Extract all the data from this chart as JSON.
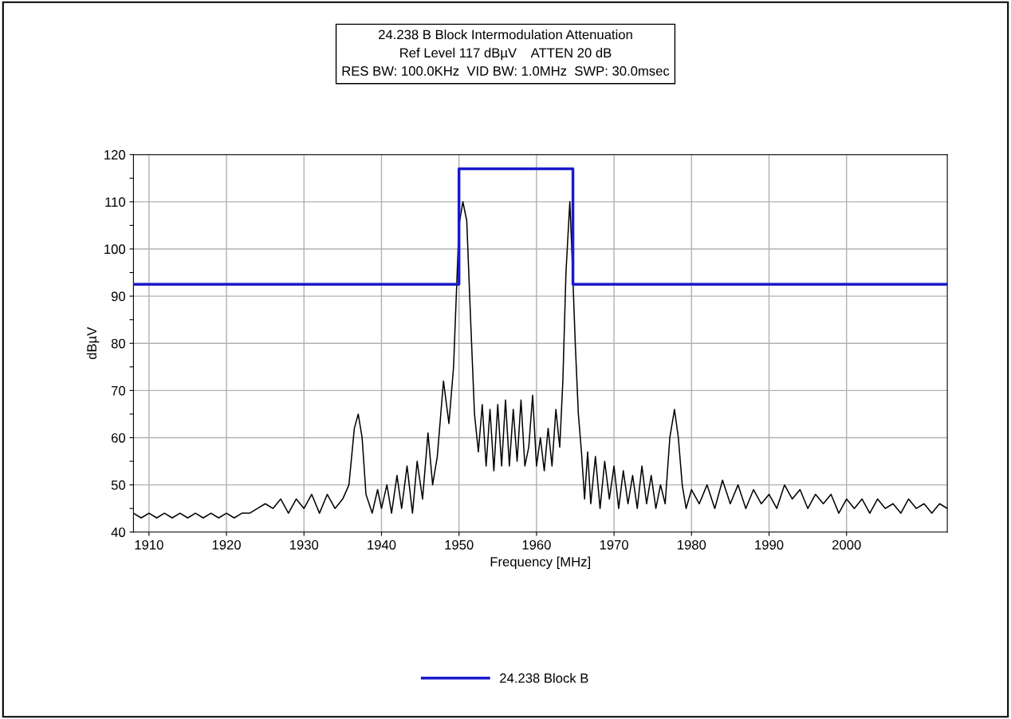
{
  "chart_data": {
    "type": "line",
    "title": "24.238 B Block Intermodulation Attenuation\nRef Level 117 dBµV    ATTEN 20 dB\nRES BW: 100.0KHz  VID BW: 1.0MHz  SWP: 30.0msec",
    "xlabel": "Frequency [MHz]",
    "ylabel": "dBµV",
    "series": [
      {
        "name": "24.238 Block B",
        "color": "#1a1acc",
        "type": "step",
        "x": [
          1908,
          1950,
          1950,
          1964.7,
          1964.7,
          2013
        ],
        "values": [
          92.5,
          92.5,
          117,
          117,
          92.5,
          92.5
        ]
      },
      {
        "color": "#000000",
        "x": [
          1908,
          1909,
          1910,
          1911,
          1912,
          1913,
          1914,
          1915,
          1916,
          1917,
          1918,
          1919,
          1920,
          1921,
          1922,
          1923,
          1924,
          1925,
          1926,
          1927,
          1928,
          1929,
          1930,
          1931,
          1932,
          1933,
          1934,
          1935,
          1935.8,
          1936.5,
          1937,
          1937.5,
          1938,
          1938.8,
          1939.5,
          1940,
          1940.7,
          1941.3,
          1942,
          1942.6,
          1943.3,
          1944,
          1944.6,
          1945.3,
          1946,
          1946.6,
          1947.2,
          1948,
          1948.7,
          1949.3,
          1950,
          1950.5,
          1951,
          1951.5,
          1952,
          1952.5,
          1953,
          1953.5,
          1954,
          1954.5,
          1955,
          1955.5,
          1956,
          1956.5,
          1957,
          1957.5,
          1958,
          1958.5,
          1959,
          1959.5,
          1960,
          1960.5,
          1961,
          1961.5,
          1962,
          1962.5,
          1963,
          1963.4,
          1963.8,
          1964.3,
          1964.6,
          1965,
          1965.4,
          1965.8,
          1966.2,
          1966.6,
          1967,
          1967.6,
          1968.2,
          1968.8,
          1969.4,
          1970,
          1970.6,
          1971.2,
          1971.8,
          1972.4,
          1973,
          1973.6,
          1974.2,
          1974.8,
          1975.4,
          1976,
          1976.6,
          1977.2,
          1977.8,
          1978.3,
          1978.8,
          1979.3,
          1980,
          1981,
          1982,
          1983,
          1984,
          1985,
          1986,
          1987,
          1988,
          1989,
          1990,
          1991,
          1992,
          1993,
          1994,
          1995,
          1996,
          1997,
          1998,
          1999,
          2000,
          2001,
          2002,
          2003,
          2004,
          2005,
          2006,
          2007,
          2008,
          2009,
          2010,
          2011,
          2012,
          2013
        ],
        "values": [
          44,
          43,
          44,
          43,
          44,
          43,
          44,
          43,
          44,
          43,
          44,
          43,
          44,
          43,
          44,
          44,
          45,
          46,
          45,
          47,
          44,
          47,
          45,
          48,
          44,
          48,
          45,
          47,
          50,
          62,
          65,
          60,
          48,
          44,
          49,
          45,
          50,
          44,
          52,
          45,
          54,
          44,
          55,
          47,
          61,
          50,
          56,
          72,
          63,
          75,
          105,
          110,
          106,
          85,
          65,
          57,
          67,
          54,
          66,
          53,
          67,
          54,
          68,
          54,
          66,
          55,
          68,
          54,
          58,
          69,
          54,
          60,
          53,
          62,
          54,
          66,
          58,
          72,
          95,
          110,
          98,
          80,
          65,
          57,
          47,
          57,
          46,
          56,
          45,
          55,
          47,
          54,
          45,
          53,
          46,
          52,
          45,
          54,
          46,
          52,
          45,
          50,
          46,
          60,
          66,
          60,
          50,
          45,
          49,
          46,
          50,
          45,
          51,
          46,
          50,
          45,
          49,
          46,
          48,
          45,
          50,
          47,
          49,
          45,
          48,
          46,
          48,
          44,
          47,
          45,
          47,
          44,
          47,
          45,
          46,
          44,
          47,
          45,
          46,
          44,
          46,
          45
        ]
      }
    ],
    "xlim": [
      1908,
      2013
    ],
    "xticks": [
      1910,
      1920,
      1930,
      1940,
      1950,
      1960,
      1970,
      1980,
      1990,
      2000
    ],
    "ylim": [
      40,
      120
    ],
    "yticks": [
      40,
      {
        "value": 45,
        "label": null
      },
      50,
      {
        "value": 55,
        "label": null
      },
      60,
      {
        "value": 65,
        "label": null
      },
      70,
      {
        "value": 75,
        "label": null
      },
      80,
      {
        "value": 85,
        "label": null
      },
      90,
      {
        "value": 95,
        "label": null
      },
      100,
      {
        "value": 105,
        "label": null
      },
      110,
      {
        "value": 115,
        "label": null
      },
      120
    ],
    "grid": true,
    "legend": "bottom"
  }
}
